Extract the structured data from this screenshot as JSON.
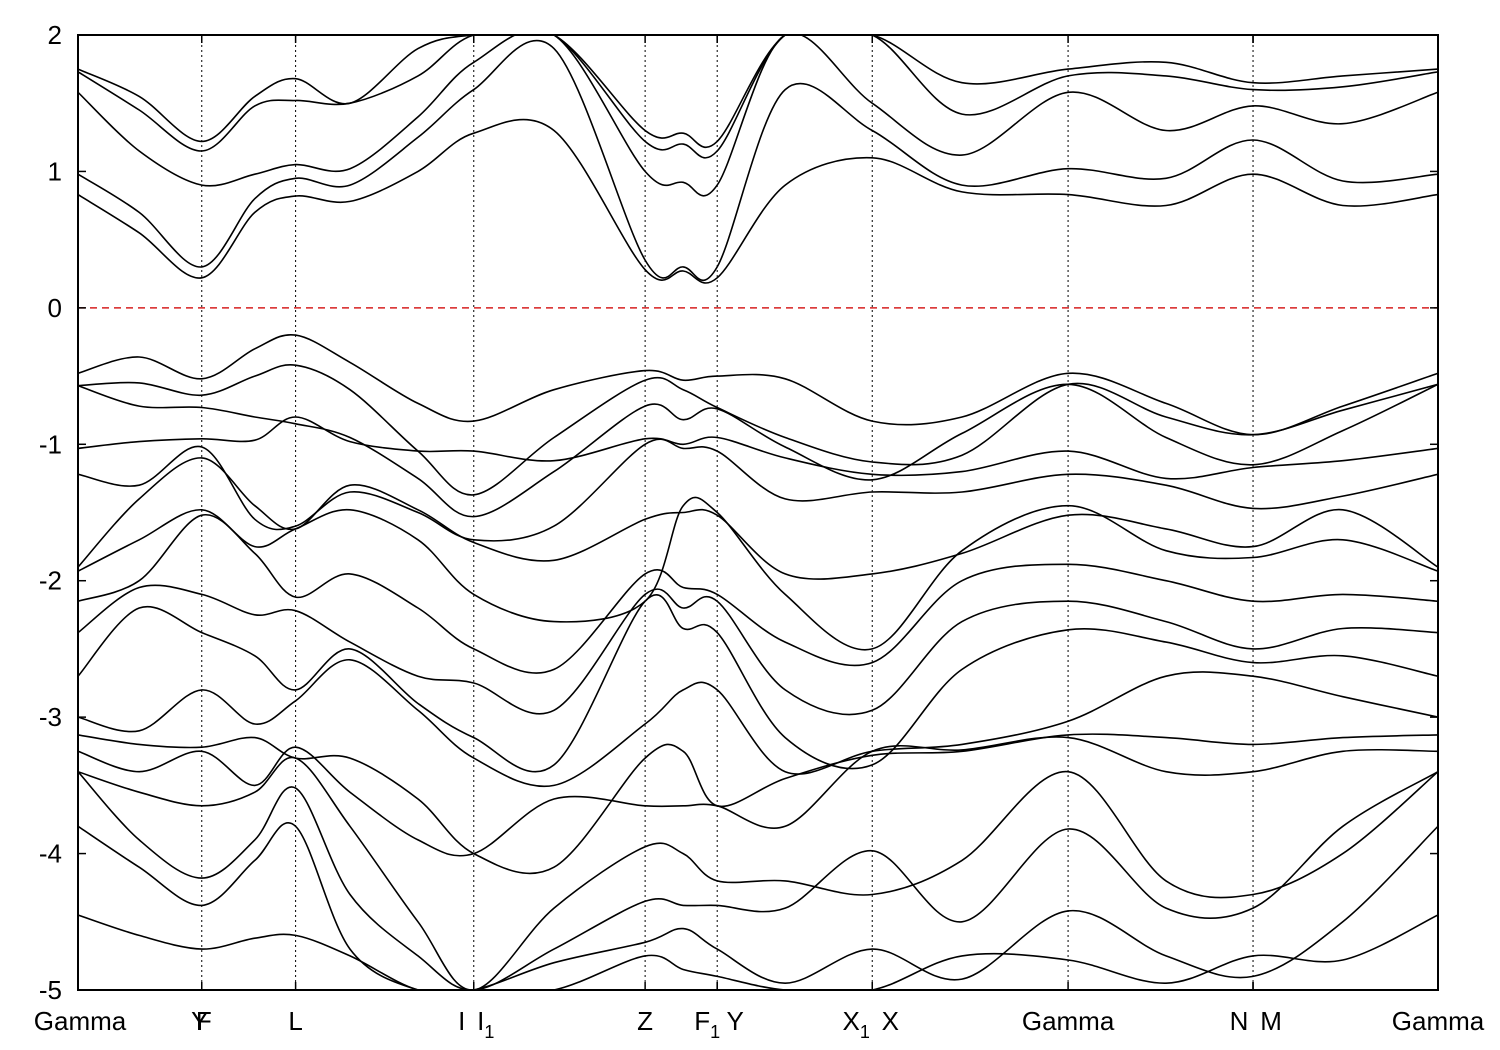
{
  "chart_data": {
    "type": "line",
    "title": "",
    "xlabel": "",
    "ylabel": "",
    "ylim": [
      -5,
      2
    ],
    "xlim": [
      0,
      10
    ],
    "grid": false,
    "legend": "none",
    "y_ticks": [
      {
        "value": 2,
        "label": "2"
      },
      {
        "value": 1,
        "label": "1"
      },
      {
        "value": 0,
        "label": "0"
      },
      {
        "value": -1,
        "label": "-1"
      },
      {
        "value": -2,
        "label": "-2"
      },
      {
        "value": -3,
        "label": "-3"
      },
      {
        "value": -4,
        "label": "-4"
      },
      {
        "value": -5,
        "label": "-5"
      }
    ],
    "kpoints": [
      {
        "x": 0.0,
        "label": "Gamma",
        "sub": ""
      },
      {
        "x": 0.91,
        "label": "Y",
        "sub": ""
      },
      {
        "x": 0.91,
        "label": "F",
        "sub": ""
      },
      {
        "x": 1.6,
        "label": "L",
        "sub": ""
      },
      {
        "x": 2.91,
        "label": "I",
        "sub": ""
      },
      {
        "x": 2.91,
        "label": "I",
        "sub": "1"
      },
      {
        "x": 4.17,
        "label": "Z",
        "sub": ""
      },
      {
        "x": 4.7,
        "label": "F",
        "sub": "1"
      },
      {
        "x": 4.7,
        "label": "Y",
        "sub": ""
      },
      {
        "x": 5.84,
        "label": "X",
        "sub": "1"
      },
      {
        "x": 5.84,
        "label": "X",
        "sub": ""
      },
      {
        "x": 7.28,
        "label": "Gamma",
        "sub": ""
      },
      {
        "x": 8.64,
        "label": "N",
        "sub": ""
      },
      {
        "x": 8.64,
        "label": "M",
        "sub": ""
      },
      {
        "x": 10.0,
        "label": "Gamma",
        "sub": ""
      }
    ],
    "fermi_level": 0,
    "colors": {
      "bands": "#000000",
      "fermi": "#d62020"
    },
    "series": [
      {
        "x": [
          0,
          0.45,
          0.91,
          1.3,
          1.6,
          2.0,
          2.5,
          2.91,
          3.5,
          4.17,
          4.45,
          4.7,
          5.2,
          5.84,
          6.5,
          7.28,
          8.0,
          8.64,
          9.3,
          10.0
        ],
        "values": [
          -0.48,
          -0.36,
          -0.52,
          -0.3,
          -0.2,
          -0.4,
          -0.7,
          -0.83,
          -0.6,
          -0.46,
          -0.53,
          -0.5,
          -0.52,
          -0.83,
          -0.8,
          -0.48,
          -0.7,
          -0.93,
          -0.72,
          -0.48
        ]
      },
      {
        "x": [
          0,
          0.45,
          0.91,
          1.3,
          1.6,
          2.0,
          2.5,
          2.91,
          3.5,
          4.17,
          4.45,
          4.7,
          5.2,
          5.84,
          6.5,
          7.28,
          8.0,
          8.64,
          9.3,
          10.0
        ],
        "values": [
          -0.57,
          -0.55,
          -0.64,
          -0.5,
          -0.42,
          -0.6,
          -1.05,
          -1.37,
          -0.95,
          -0.53,
          -0.6,
          -0.73,
          -0.95,
          -1.13,
          -1.08,
          -0.56,
          -0.8,
          -0.93,
          -0.75,
          -0.56
        ]
      },
      {
        "x": [
          0,
          0.45,
          0.91,
          1.3,
          1.6,
          2.0,
          2.5,
          2.91,
          3.5,
          4.17,
          4.45,
          4.7,
          5.2,
          5.84,
          6.5,
          7.28,
          8.0,
          8.64,
          9.3,
          10.0
        ],
        "values": [
          -0.57,
          -0.72,
          -0.73,
          -0.8,
          -0.85,
          -0.95,
          -1.25,
          -1.53,
          -1.2,
          -0.72,
          -0.82,
          -0.74,
          -1.02,
          -1.26,
          -0.92,
          -0.56,
          -0.95,
          -1.15,
          -0.9,
          -0.56
        ]
      },
      {
        "x": [
          0,
          0.45,
          0.91,
          1.3,
          1.6,
          2.0,
          2.5,
          2.91,
          3.5,
          4.17,
          4.45,
          4.7,
          5.2,
          5.84,
          6.5,
          7.28,
          8.0,
          8.64,
          9.3,
          10.0
        ],
        "values": [
          -1.03,
          -0.98,
          -0.96,
          -0.97,
          -0.8,
          -0.98,
          -1.05,
          -1.05,
          -1.12,
          -0.96,
          -1.0,
          -0.95,
          -1.1,
          -1.22,
          -1.2,
          -1.05,
          -1.25,
          -1.17,
          -1.12,
          -1.03
        ]
      },
      {
        "x": [
          0,
          0.45,
          0.91,
          1.3,
          1.6,
          2.0,
          2.5,
          2.91,
          3.5,
          4.17,
          4.45,
          4.7,
          5.2,
          5.84,
          6.5,
          7.28,
          8.0,
          8.64,
          9.3,
          10.0
        ],
        "values": [
          -1.22,
          -1.3,
          -1.02,
          -1.55,
          -1.6,
          -1.35,
          -1.5,
          -1.7,
          -1.6,
          -1.0,
          -1.03,
          -1.05,
          -1.4,
          -1.35,
          -1.35,
          -1.22,
          -1.3,
          -1.47,
          -1.38,
          -1.22
        ]
      },
      {
        "x": [
          0,
          0.45,
          0.91,
          1.3,
          1.6,
          2.0,
          2.5,
          2.91,
          3.5,
          4.17,
          4.45,
          4.7,
          5.2,
          5.84,
          6.5,
          7.28,
          8.0,
          8.64,
          9.3,
          10.0
        ],
        "values": [
          -1.9,
          -1.4,
          -1.1,
          -1.45,
          -1.62,
          -1.3,
          -1.48,
          -1.72,
          -1.85,
          -1.55,
          -1.5,
          -1.52,
          -1.95,
          -1.95,
          -1.8,
          -1.52,
          -1.62,
          -1.75,
          -1.48,
          -1.9
        ]
      },
      {
        "x": [
          0,
          0.45,
          0.91,
          1.3,
          1.6,
          2.0,
          2.5,
          2.91,
          3.5,
          4.17,
          4.45,
          4.7,
          5.2,
          5.84,
          6.5,
          7.28,
          8.0,
          8.64,
          9.3,
          10.0
        ],
        "values": [
          -1.93,
          -1.7,
          -1.48,
          -1.75,
          -1.62,
          -1.48,
          -1.7,
          -2.1,
          -2.3,
          -2.15,
          -1.45,
          -1.5,
          -2.1,
          -2.5,
          -1.78,
          -1.45,
          -1.78,
          -1.83,
          -1.7,
          -1.93
        ]
      },
      {
        "x": [
          0,
          0.45,
          0.91,
          1.3,
          1.6,
          2.0,
          2.5,
          2.91,
          3.5,
          4.17,
          4.45,
          4.7,
          5.2,
          5.84,
          6.5,
          7.28,
          8.0,
          8.64,
          9.3,
          10.0
        ],
        "values": [
          -2.15,
          -2.0,
          -1.52,
          -1.8,
          -2.12,
          -1.95,
          -2.2,
          -2.5,
          -2.65,
          -1.95,
          -2.05,
          -2.1,
          -2.45,
          -2.6,
          -2.0,
          -1.88,
          -2.0,
          -2.15,
          -2.1,
          -2.15
        ]
      },
      {
        "x": [
          0,
          0.45,
          0.91,
          1.3,
          1.6,
          2.0,
          2.5,
          2.91,
          3.5,
          4.17,
          4.45,
          4.7,
          5.2,
          5.84,
          6.5,
          7.28,
          8.0,
          8.64,
          9.3,
          10.0
        ],
        "values": [
          -2.38,
          -2.05,
          -2.1,
          -2.25,
          -2.22,
          -2.45,
          -2.7,
          -2.75,
          -2.95,
          -2.1,
          -2.2,
          -2.15,
          -2.8,
          -2.95,
          -2.3,
          -2.15,
          -2.3,
          -2.5,
          -2.35,
          -2.38
        ]
      },
      {
        "x": [
          0,
          0.45,
          0.91,
          1.3,
          1.6,
          2.0,
          2.5,
          2.91,
          3.5,
          4.17,
          4.45,
          4.7,
          5.2,
          5.84,
          6.5,
          7.28,
          8.0,
          8.64,
          9.3,
          10.0
        ],
        "values": [
          -2.7,
          -2.2,
          -2.38,
          -2.55,
          -2.8,
          -2.5,
          -2.9,
          -3.15,
          -3.35,
          -2.15,
          -2.35,
          -2.38,
          -3.15,
          -3.35,
          -2.65,
          -2.36,
          -2.45,
          -2.6,
          -2.55,
          -2.7
        ]
      },
      {
        "x": [
          0,
          0.45,
          0.91,
          1.3,
          1.6,
          2.0,
          2.5,
          2.91,
          3.5,
          4.17,
          4.45,
          4.7,
          5.2,
          5.84,
          6.5,
          7.28,
          8.0,
          8.64,
          9.3,
          10.0
        ],
        "values": [
          -3.0,
          -3.1,
          -2.8,
          -3.05,
          -2.88,
          -2.58,
          -2.95,
          -3.3,
          -3.5,
          -3.05,
          -2.8,
          -2.8,
          -3.4,
          -3.25,
          -3.2,
          -3.03,
          -2.7,
          -2.7,
          -2.85,
          -3.0
        ]
      },
      {
        "x": [
          0,
          0.45,
          0.91,
          1.3,
          1.6,
          2.0,
          2.5,
          2.91,
          3.5,
          4.17,
          4.45,
          4.7,
          5.2,
          5.84,
          6.5,
          7.28,
          8.0,
          8.64,
          9.3,
          10.0
        ],
        "values": [
          -3.13,
          -3.2,
          -3.22,
          -3.15,
          -3.3,
          -3.3,
          -3.6,
          -4.0,
          -4.1,
          -3.3,
          -3.25,
          -3.65,
          -3.45,
          -3.28,
          -3.25,
          -3.13,
          -3.15,
          -3.2,
          -3.15,
          -3.13
        ]
      },
      {
        "x": [
          0,
          0.45,
          0.91,
          1.3,
          1.6,
          2.0,
          2.5,
          2.91,
          3.5,
          4.17,
          4.45,
          4.7,
          5.2,
          5.84,
          6.5,
          7.28,
          8.0,
          8.64,
          9.3,
          10.0
        ],
        "values": [
          -3.25,
          -3.4,
          -3.25,
          -3.5,
          -3.22,
          -3.55,
          -3.9,
          -4.0,
          -3.6,
          -3.65,
          -3.65,
          -3.65,
          -3.8,
          -3.25,
          -3.24,
          -3.15,
          -3.4,
          -3.4,
          -3.25,
          -3.25
        ]
      },
      {
        "x": [
          0,
          0.45,
          0.91,
          1.3,
          1.6,
          2.0,
          2.5,
          2.91,
          3.5,
          4.17,
          4.45,
          4.7,
          5.2,
          5.84,
          6.5,
          7.28,
          8.0,
          8.64,
          9.3,
          10.0
        ],
        "values": [
          -3.4,
          -3.55,
          -3.65,
          -3.55,
          -3.3,
          -3.8,
          -4.5,
          -5.0,
          -4.4,
          -3.95,
          -4.0,
          -4.2,
          -4.2,
          -4.3,
          -4.05,
          -3.4,
          -4.2,
          -4.3,
          -4.0,
          -3.4
        ]
      },
      {
        "x": [
          0,
          0.45,
          0.91,
          1.3,
          1.6,
          2.0,
          2.5,
          2.91,
          3.5,
          4.17,
          4.45,
          4.7,
          5.2,
          5.84,
          6.5,
          7.28,
          8.0,
          8.64,
          9.3,
          10.0
        ],
        "values": [
          -3.4,
          -3.9,
          -4.18,
          -3.9,
          -3.52,
          -4.3,
          -4.75,
          -5.0,
          -4.7,
          -4.35,
          -4.38,
          -4.38,
          -4.4,
          -3.98,
          -4.5,
          -3.82,
          -4.4,
          -4.4,
          -3.8,
          -3.4
        ]
      },
      {
        "x": [
          0,
          0.45,
          0.91,
          1.3,
          1.6,
          2.0,
          2.5,
          2.91,
          3.5,
          4.17,
          4.45,
          4.7,
          5.2,
          5.84,
          6.5,
          7.28,
          8.0,
          8.64,
          9.3,
          10.0
        ],
        "values": [
          -3.8,
          -4.1,
          -4.38,
          -4.05,
          -3.8,
          -4.7,
          -5.0,
          -5.0,
          -4.8,
          -4.65,
          -4.55,
          -4.7,
          -4.95,
          -4.7,
          -4.92,
          -4.42,
          -4.75,
          -4.9,
          -4.5,
          -3.8
        ]
      },
      {
        "x": [
          0,
          0.45,
          0.91,
          1.3,
          1.6,
          2.0,
          2.5,
          2.91,
          3.5,
          4.17,
          4.45,
          4.7,
          5.2,
          5.84,
          6.5,
          7.28,
          8.0,
          8.64,
          9.3,
          10.0
        ],
        "values": [
          -4.45,
          -4.6,
          -4.7,
          -4.62,
          -4.6,
          -4.75,
          -5.0,
          -5.0,
          -5.0,
          -4.75,
          -4.85,
          -4.9,
          -5.0,
          -5.0,
          -4.75,
          -4.78,
          -4.95,
          -4.75,
          -4.78,
          -4.45
        ]
      },
      {
        "x": [
          0,
          0.45,
          0.91,
          1.3,
          1.6,
          2.0,
          2.5,
          2.91,
          3.5,
          4.17,
          4.45,
          4.7,
          5.2,
          5.84,
          6.5,
          7.28,
          8.0,
          8.64,
          9.3,
          10.0
        ],
        "values": [
          0.83,
          0.55,
          0.22,
          0.7,
          0.82,
          0.78,
          1.0,
          1.28,
          1.3,
          0.28,
          0.27,
          0.22,
          0.9,
          1.1,
          0.85,
          0.83,
          0.75,
          0.98,
          0.75,
          0.83
        ]
      },
      {
        "x": [
          0,
          0.45,
          0.91,
          1.3,
          1.6,
          2.0,
          2.5,
          2.91,
          3.5,
          4.17,
          4.45,
          4.7,
          5.2,
          5.84,
          6.5,
          7.28,
          8.0,
          8.64,
          9.3,
          10.0
        ],
        "values": [
          0.98,
          0.7,
          0.3,
          0.8,
          0.95,
          0.9,
          1.25,
          1.6,
          1.9,
          0.35,
          0.3,
          0.3,
          1.6,
          1.3,
          0.9,
          1.02,
          0.95,
          1.23,
          0.93,
          0.98
        ]
      },
      {
        "x": [
          0,
          0.45,
          0.91,
          1.3,
          1.6,
          2.0,
          2.5,
          2.91,
          3.5,
          4.17,
          4.45,
          4.7,
          5.2,
          5.84,
          6.5,
          7.28,
          8.0,
          8.64,
          9.3,
          10.0
        ],
        "values": [
          1.58,
          1.15,
          0.9,
          0.98,
          1.05,
          1.02,
          1.4,
          1.8,
          2.0,
          1.0,
          0.92,
          0.9,
          2.0,
          1.5,
          1.12,
          1.58,
          1.3,
          1.48,
          1.35,
          1.58
        ]
      },
      {
        "x": [
          0,
          0.45,
          0.91,
          1.3,
          1.6,
          2.0,
          2.5,
          2.91,
          3.5,
          4.17,
          4.45,
          4.7,
          5.2,
          5.84,
          6.5,
          7.28,
          8.0,
          8.64,
          9.3,
          10.0
        ],
        "values": [
          1.73,
          1.45,
          1.15,
          1.48,
          1.52,
          1.5,
          1.7,
          2.0,
          2.0,
          1.22,
          1.2,
          1.15,
          2.0,
          2.0,
          1.42,
          1.7,
          1.7,
          1.6,
          1.62,
          1.73
        ]
      },
      {
        "x": [
          0,
          0.45,
          0.91,
          1.3,
          1.6,
          2.0,
          2.5,
          2.91,
          3.5,
          4.17,
          4.45,
          4.7,
          5.2,
          5.84,
          6.5,
          7.28,
          8.0,
          8.64,
          9.3,
          10.0
        ],
        "values": [
          1.75,
          1.55,
          1.22,
          1.55,
          1.68,
          1.5,
          1.9,
          2.0,
          2.0,
          1.3,
          1.28,
          1.22,
          2.0,
          2.0,
          1.65,
          1.75,
          1.8,
          1.65,
          1.7,
          1.75
        ]
      }
    ]
  }
}
